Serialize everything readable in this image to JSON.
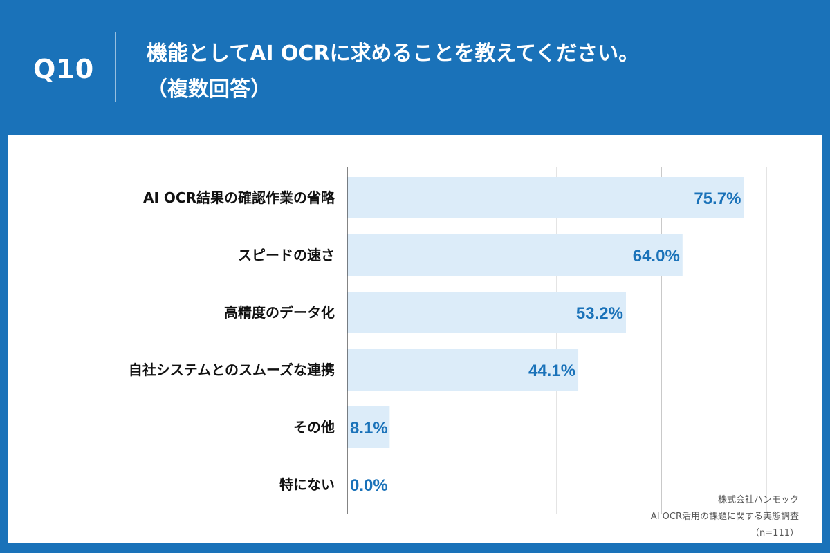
{
  "header": {
    "question_number": "Q10",
    "title_line1": "機能としてAI OCRに求めることを教えてください。",
    "title_line2": "（複数回答）"
  },
  "colors": {
    "header_bg": "#1a72b9",
    "bar": "#dcecf9",
    "value_text": "#1a72b9",
    "grid": "#c9c9c9"
  },
  "chart_data": {
    "type": "bar",
    "orientation": "horizontal",
    "categories": [
      "AI OCR結果の確認作業の省略",
      "スピードの速さ",
      "高精度のデータ化",
      "自社システムとのスムーズな連携",
      "その他",
      "特にない"
    ],
    "values": [
      75.7,
      64.0,
      53.2,
      44.1,
      8.1,
      0.0
    ],
    "value_labels": [
      "75.7%",
      "64.0%",
      "53.2%",
      "44.1%",
      "8.1%",
      "0.0%"
    ],
    "xlim": [
      0,
      80
    ],
    "grid": true,
    "unit": "%"
  },
  "footer": {
    "company": "株式会社ハンモック",
    "survey": "AI OCR活用の課題に関する実態調査",
    "sample": "（n=111）"
  }
}
